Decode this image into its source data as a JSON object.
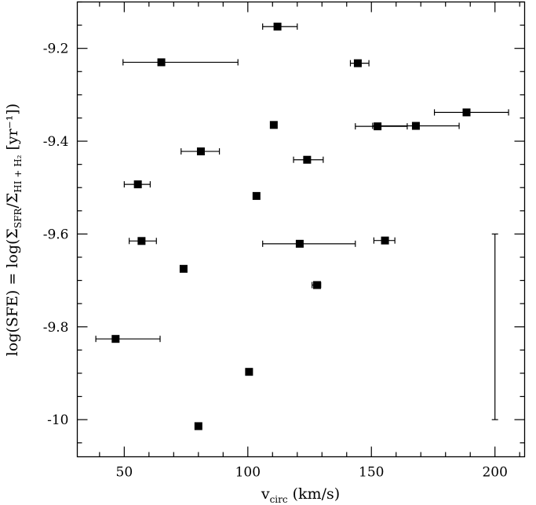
{
  "chart_data": {
    "type": "scatter",
    "xlabel": "v",
    "xlabel_sub": "circ",
    "xlabel_unit": " (km/s)",
    "ylabel_parts": {
      "pre": "log(SFE)  =  log(Σ",
      "sub1": "SFR",
      "mid": "/Σ",
      "sub2": "HI + H₂",
      "post": " [yr⁻¹])"
    },
    "xlim": [
      31,
      212
    ],
    "ylim": [
      -10.08,
      -9.1
    ],
    "x_ticks": [
      50,
      100,
      150,
      200
    ],
    "x_tick_labels": [
      "50",
      "100",
      "150",
      "200"
    ],
    "y_ticks": [
      -10.0,
      -9.8,
      -9.6,
      -9.4,
      -9.2
    ],
    "y_tick_labels": [
      "-10",
      "-9.8",
      "-9.6",
      "-9.4",
      "-9.2"
    ],
    "grid": false,
    "points": [
      {
        "x": 112.0,
        "y": -9.153,
        "xerr_low": 106.0,
        "xerr_high": 120.0
      },
      {
        "x": 65.0,
        "y": -9.23,
        "xerr_low": 49.5,
        "xerr_high": 96.0
      },
      {
        "x": 144.5,
        "y": -9.232,
        "xerr_low": 141.5,
        "xerr_high": 149.0
      },
      {
        "x": 188.5,
        "y": -9.338,
        "xerr_low": 175.5,
        "xerr_high": 205.5
      },
      {
        "x": 110.5,
        "y": -9.365,
        "xerr_low": 110.0,
        "xerr_high": 111.5
      },
      {
        "x": 152.5,
        "y": -9.368,
        "xerr_low": 143.5,
        "xerr_high": 164.5
      },
      {
        "x": 168.0,
        "y": -9.367,
        "xerr_low": 150.5,
        "xerr_high": 185.5
      },
      {
        "x": 81.0,
        "y": -9.422,
        "xerr_low": 73.0,
        "xerr_high": 88.5
      },
      {
        "x": 124.0,
        "y": -9.44,
        "xerr_low": 118.5,
        "xerr_high": 130.5
      },
      {
        "x": 55.5,
        "y": -9.493,
        "xerr_low": 50.0,
        "xerr_high": 60.5
      },
      {
        "x": 103.5,
        "y": -9.518,
        "xerr_low": 103.0,
        "xerr_high": 104.0
      },
      {
        "x": 57.0,
        "y": -9.615,
        "xerr_low": 52.0,
        "xerr_high": 63.0
      },
      {
        "x": 121.0,
        "y": -9.621,
        "xerr_low": 106.0,
        "xerr_high": 143.5
      },
      {
        "x": 155.5,
        "y": -9.614,
        "xerr_low": 151.0,
        "xerr_high": 159.5
      },
      {
        "x": 74.0,
        "y": -9.675,
        "xerr_low": 73.5,
        "xerr_high": 74.5
      },
      {
        "x": 128.0,
        "y": -9.71,
        "xerr_low": 126.0,
        "xerr_high": 129.5
      },
      {
        "x": 46.5,
        "y": -9.826,
        "xerr_low": 38.5,
        "xerr_high": 64.5
      },
      {
        "x": 100.5,
        "y": -9.897,
        "xerr_low": 99.5,
        "xerr_high": 101.5
      },
      {
        "x": 80.0,
        "y": -10.014,
        "xerr_low": 79.5,
        "xerr_high": 80.5
      }
    ],
    "typical_yerr_bar": {
      "x": 200.0,
      "y_low": -10.0,
      "y_high": -9.6
    }
  }
}
